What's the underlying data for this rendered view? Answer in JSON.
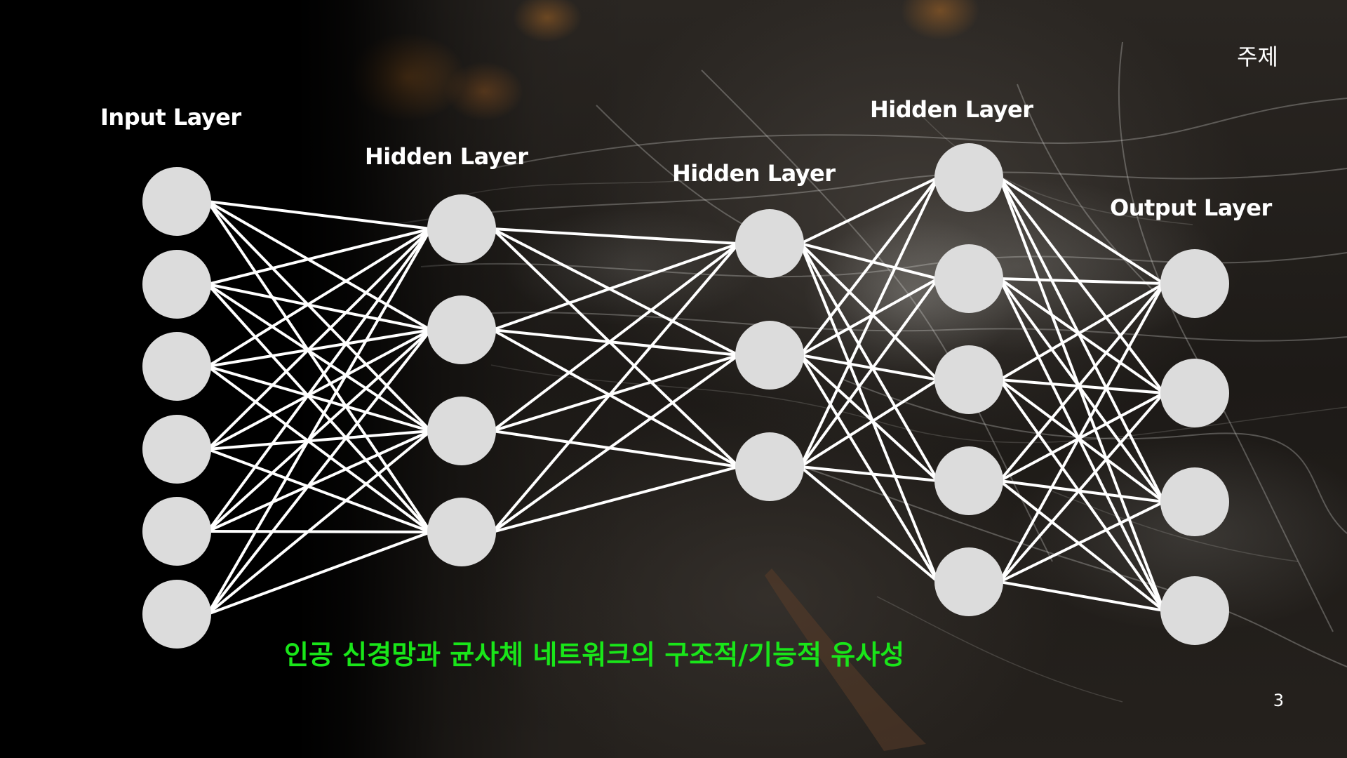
{
  "header": {
    "topic": "주제",
    "page_number": "3"
  },
  "diagram": {
    "layers": [
      {
        "label": "Input Layer",
        "nodes": 6
      },
      {
        "label": "Hidden Layer",
        "nodes": 4
      },
      {
        "label": "Hidden Layer",
        "nodes": 3
      },
      {
        "label": "Hidden Layer",
        "nodes": 5
      },
      {
        "label": "Output Layer",
        "nodes": 4
      }
    ],
    "connectivity": "fully-connected",
    "colors": {
      "node": "#dcdcdc",
      "edge": "#ffffff",
      "label": "#ffffff"
    }
  },
  "caption": {
    "text": "인공 신경망과 균사체 네트워크의 구조적/기능적 유사성",
    "color": "#19e619"
  }
}
